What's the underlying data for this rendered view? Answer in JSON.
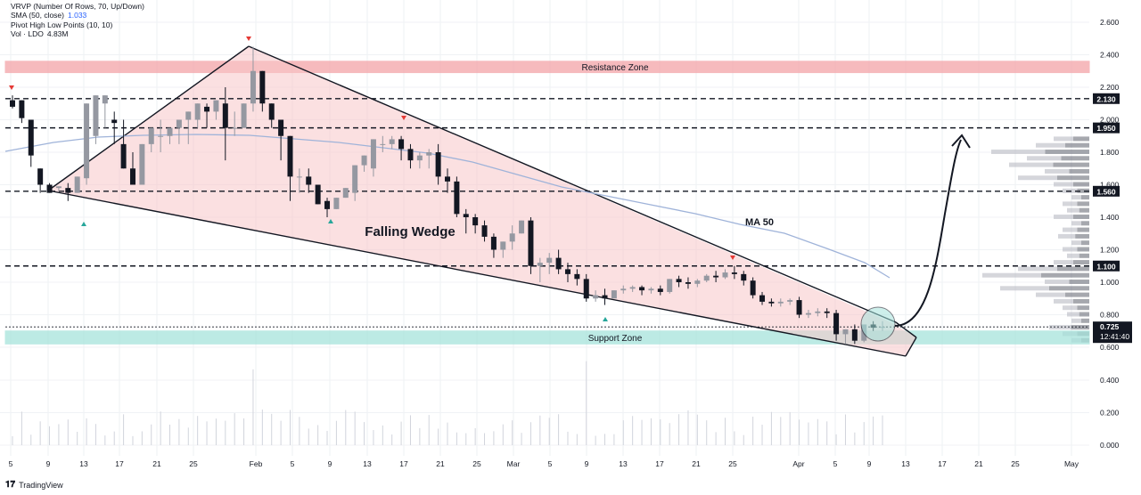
{
  "legend": {
    "vrvp": "VRVP (Number Of Rows, 70, Up/Down)",
    "sma_label": "SMA (50, close)",
    "sma_value": "1.033",
    "pivot": "Pivot High Low Points (10, 10)",
    "vol_label": "Vol · LDO",
    "vol_value": "4.83M"
  },
  "footer": {
    "brand": "TradingView"
  },
  "chart_data": {
    "type": "candlestick",
    "symbol": "LDO",
    "y_axis": {
      "ticks": [
        "2.600",
        "2.400",
        "2.200",
        "2.000",
        "1.800",
        "1.600",
        "1.400",
        "1.200",
        "1.000",
        "0.800",
        "0.600",
        "0.400",
        "0.200",
        "0.000"
      ],
      "range": [
        0.0,
        2.6
      ]
    },
    "x_axis": {
      "ticks": [
        "5",
        "9",
        "13",
        "17",
        "21",
        "25",
        "Feb",
        "5",
        "9",
        "13",
        "17",
        "21",
        "25",
        "Mar",
        "5",
        "9",
        "13",
        "17",
        "21",
        "25",
        "Apr",
        "5",
        "9",
        "13",
        "17",
        "21",
        "25",
        "May"
      ]
    },
    "horizontal_levels": [
      {
        "value": 2.13,
        "label": "2.130"
      },
      {
        "value": 1.95,
        "label": "1.950"
      },
      {
        "value": 1.56,
        "label": "1.560"
      },
      {
        "value": 1.1,
        "label": "1.100"
      }
    ],
    "current_price": {
      "value": 0.725,
      "label": "0.725",
      "countdown": "12:41:40"
    },
    "zones": [
      {
        "name": "Resistance Zone",
        "from": 2.29,
        "to": 2.36,
        "color": "#f4a3a8"
      },
      {
        "name": "Support Zone",
        "from": 0.62,
        "to": 0.7,
        "color": "#a6e3dc"
      }
    ],
    "annotations": {
      "pattern": "Falling Wedge",
      "ma": "MA 50"
    },
    "candles": [
      [
        2.12,
        2.15,
        2.08,
        2.07
      ],
      [
        2.12,
        2.08,
        2.01,
        1.98
      ],
      [
        2.0,
        1.8,
        1.78,
        1.71
      ],
      [
        1.7,
        1.7,
        1.6,
        1.55
      ],
      [
        1.6,
        1.61,
        1.55,
        1.55
      ],
      [
        1.58,
        1.58,
        1.59,
        1.56
      ],
      [
        1.58,
        1.61,
        1.55,
        1.5
      ],
      [
        1.55,
        1.6,
        1.65,
        1.55
      ],
      [
        1.64,
        1.9,
        2.1,
        1.6
      ],
      [
        1.9,
        2.1,
        2.15,
        1.85
      ],
      [
        2.1,
        2.02,
        2.15,
        1.95
      ],
      [
        2.0,
        2.05,
        1.98,
        1.85
      ],
      [
        1.85,
        2.0,
        1.7,
        1.7
      ],
      [
        1.7,
        1.8,
        1.6,
        1.6
      ],
      [
        1.6,
        1.85,
        1.85,
        1.6
      ],
      [
        1.85,
        1.95,
        1.95,
        1.8
      ],
      [
        1.9,
        2.0,
        1.9,
        1.8
      ],
      [
        1.9,
        1.95,
        1.95,
        1.85
      ],
      [
        1.95,
        2.0,
        2.0,
        1.85
      ],
      [
        2.0,
        2.05,
        2.05,
        1.85
      ],
      [
        2.0,
        2.1,
        2.1,
        1.95
      ],
      [
        2.08,
        2.1,
        2.05,
        1.95
      ],
      [
        2.05,
        2.12,
        2.12,
        2.0
      ],
      [
        2.1,
        2.2,
        1.95,
        1.75
      ],
      [
        1.95,
        2.05,
        1.95,
        1.9
      ],
      [
        1.95,
        2.1,
        2.1,
        1.95
      ],
      [
        2.1,
        2.45,
        2.3,
        2.05
      ],
      [
        2.3,
        2.3,
        2.1,
        2.05
      ],
      [
        2.1,
        2.1,
        2.0,
        1.95
      ],
      [
        2.0,
        1.95,
        1.9,
        1.75
      ],
      [
        1.9,
        1.8,
        1.65,
        1.5
      ],
      [
        1.65,
        1.7,
        1.65,
        1.55
      ],
      [
        1.65,
        1.7,
        1.6,
        1.55
      ],
      [
        1.6,
        1.58,
        1.48,
        1.48
      ],
      [
        1.5,
        1.52,
        1.45,
        1.4
      ],
      [
        1.45,
        1.5,
        1.52,
        1.45
      ],
      [
        1.52,
        1.56,
        1.58,
        1.52
      ],
      [
        1.55,
        1.72,
        1.72,
        1.5
      ],
      [
        1.72,
        1.78,
        1.78,
        1.68
      ],
      [
        1.7,
        1.82,
        1.88,
        1.65
      ],
      [
        1.85,
        1.9,
        1.85,
        1.8
      ],
      [
        1.85,
        1.9,
        1.88,
        1.82
      ],
      [
        1.88,
        1.9,
        1.82,
        1.75
      ],
      [
        1.82,
        1.85,
        1.75,
        1.7
      ],
      [
        1.75,
        1.8,
        1.78,
        1.7
      ],
      [
        1.78,
        1.82,
        1.8,
        1.7
      ],
      [
        1.8,
        1.85,
        1.65,
        1.6
      ],
      [
        1.65,
        1.7,
        1.62,
        1.55
      ],
      [
        1.62,
        1.65,
        1.42,
        1.4
      ],
      [
        1.42,
        1.45,
        1.4,
        1.3
      ],
      [
        1.4,
        1.42,
        1.35,
        1.3
      ],
      [
        1.35,
        1.38,
        1.28,
        1.25
      ],
      [
        1.28,
        1.3,
        1.2,
        1.15
      ],
      [
        1.2,
        1.25,
        1.25,
        1.15
      ],
      [
        1.25,
        1.35,
        1.3,
        1.2
      ],
      [
        1.3,
        1.38,
        1.38,
        1.3
      ],
      [
        1.38,
        1.4,
        1.1,
        1.05
      ],
      [
        1.1,
        1.15,
        1.12,
        1.0
      ],
      [
        1.12,
        1.18,
        1.15,
        1.05
      ],
      [
        1.15,
        1.2,
        1.08,
        1.05
      ],
      [
        1.08,
        1.12,
        1.05,
        1.0
      ],
      [
        1.05,
        1.08,
        1.02,
        0.98
      ],
      [
        1.02,
        1.05,
        0.9,
        0.88
      ],
      [
        0.9,
        0.95,
        0.92,
        0.88
      ],
      [
        0.92,
        0.96,
        0.9,
        0.86
      ],
      [
        0.9,
        0.95,
        0.95,
        0.9
      ],
      [
        0.95,
        0.98,
        0.96,
        0.93
      ],
      [
        0.96,
        0.98,
        0.97,
        0.94
      ],
      [
        0.97,
        0.98,
        0.95,
        0.92
      ],
      [
        0.95,
        0.97,
        0.96,
        0.93
      ],
      [
        0.96,
        0.98,
        0.94,
        0.92
      ],
      [
        0.94,
        1.02,
        1.02,
        0.93
      ],
      [
        1.02,
        1.04,
        1.0,
        0.97
      ],
      [
        1.0,
        1.03,
        0.99,
        0.96
      ],
      [
        0.99,
        1.02,
        1.01,
        0.97
      ],
      [
        1.01,
        1.05,
        1.04,
        1.0
      ],
      [
        1.04,
        1.07,
        1.03,
        1.0
      ],
      [
        1.03,
        1.08,
        1.06,
        1.02
      ],
      [
        1.06,
        1.1,
        1.05,
        1.02
      ],
      [
        1.05,
        1.07,
        1.01,
        0.98
      ],
      [
        1.01,
        1.03,
        0.92,
        0.9
      ],
      [
        0.92,
        0.94,
        0.88,
        0.86
      ],
      [
        0.88,
        0.9,
        0.87,
        0.85
      ],
      [
        0.87,
        0.9,
        0.88,
        0.85
      ],
      [
        0.88,
        0.9,
        0.89,
        0.86
      ],
      [
        0.89,
        0.91,
        0.8,
        0.78
      ],
      [
        0.8,
        0.83,
        0.81,
        0.78
      ],
      [
        0.81,
        0.84,
        0.82,
        0.79
      ],
      [
        0.82,
        0.84,
        0.81,
        0.78
      ],
      [
        0.81,
        0.83,
        0.68,
        0.64
      ],
      [
        0.68,
        0.7,
        0.71,
        0.62
      ],
      [
        0.71,
        0.74,
        0.64,
        0.62
      ],
      [
        0.64,
        0.74,
        0.74,
        0.63
      ],
      [
        0.74,
        0.76,
        0.72,
        0.7
      ],
      [
        0.72,
        0.76,
        0.725,
        0.7
      ]
    ]
  }
}
